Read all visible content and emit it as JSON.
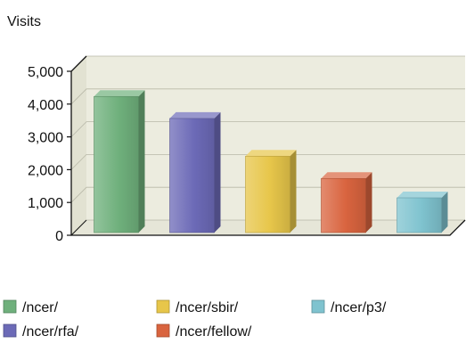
{
  "chart_data": {
    "type": "bar",
    "title": "",
    "ylabel": "Visits",
    "xlabel": "",
    "ylim": [
      0,
      5000
    ],
    "yticks": [
      0,
      1000,
      2000,
      3000,
      4000,
      5000
    ],
    "ytick_labels": [
      "0",
      "1,000",
      "2,000",
      "3,000",
      "4,000",
      "5,000"
    ],
    "grid": true,
    "three_d": true,
    "legend_position": "bottom",
    "categories": [
      "/ncer/",
      "/ncer/rfa/",
      "/ncer/sbir/",
      "/ncer/fellow/",
      "/ncer/p3/"
    ],
    "values": [
      4150,
      3480,
      2330,
      1650,
      1060
    ],
    "colors": [
      "#6fb07c",
      "#6c6ab7",
      "#e7c64a",
      "#d9643f",
      "#7fc3cf"
    ],
    "legend_order": [
      "/ncer/",
      "/ncer/rfa/",
      "/ncer/sbir/",
      "/ncer/fellow/",
      "/ncer/p3/"
    ]
  }
}
